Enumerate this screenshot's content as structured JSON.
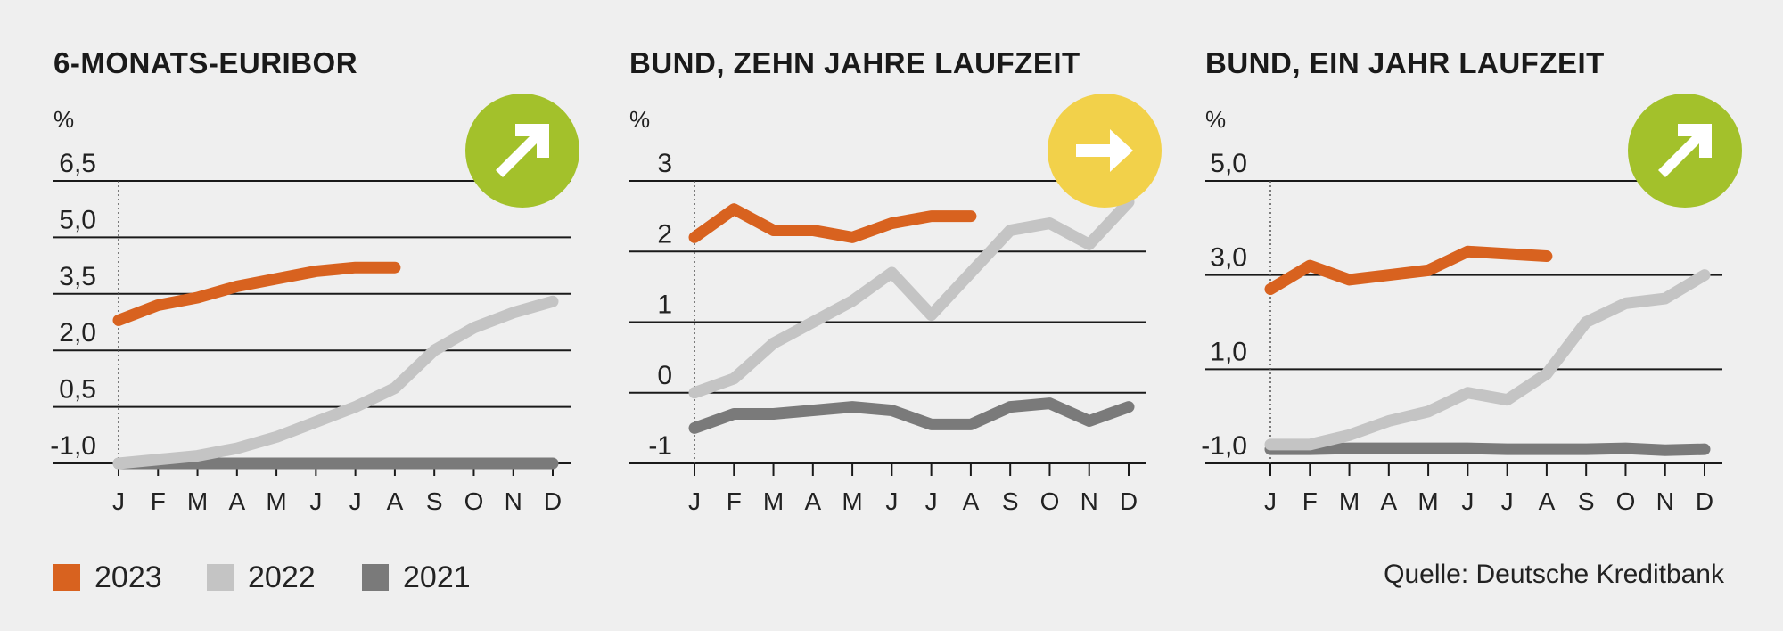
{
  "colors": {
    "2023": "#d8621f",
    "2022": "#c4c4c4",
    "2021": "#7a7a7a",
    "up": "#a3c12b",
    "side": "#f2d14a"
  },
  "legend": [
    {
      "label": "2023",
      "color": "#d8621f"
    },
    {
      "label": "2022",
      "color": "#c4c4c4"
    },
    {
      "label": "2021",
      "color": "#7a7a7a"
    }
  ],
  "source": "Quelle: Deutsche Kreditbank",
  "chart_data": [
    {
      "type": "line",
      "title": "6-MONATS-EURIBOR",
      "unit": "%",
      "trend": "up",
      "trend_icon": "arrow-up-right-icon",
      "categories": [
        "J",
        "F",
        "M",
        "A",
        "M",
        "J",
        "J",
        "A",
        "S",
        "O",
        "N",
        "D"
      ],
      "yticks": [
        "6,5",
        "5,0",
        "3,5",
        "2,0",
        "0,5",
        "-1,0"
      ],
      "ytick_values": [
        6.5,
        5.0,
        3.5,
        2.0,
        0.5,
        -1.0
      ],
      "ylim": [
        -1.0,
        6.5
      ],
      "series": [
        {
          "name": "2023",
          "values": [
            2.8,
            3.2,
            3.4,
            3.7,
            3.9,
            4.1,
            4.2,
            4.2,
            null,
            null,
            null,
            null
          ]
        },
        {
          "name": "2022",
          "values": [
            -1.0,
            -0.9,
            -0.8,
            -0.6,
            -0.3,
            0.1,
            0.5,
            1.0,
            2.0,
            2.6,
            3.0,
            3.3
          ]
        },
        {
          "name": "2021",
          "values": [
            -1.0,
            -1.0,
            -1.0,
            -1.0,
            -1.0,
            -1.0,
            -1.0,
            -1.0,
            -1.0,
            -1.0,
            -1.0,
            -1.0
          ]
        }
      ]
    },
    {
      "type": "line",
      "title": "BUND, ZEHN JAHRE LAUFZEIT",
      "unit": "%",
      "trend": "sideways",
      "trend_icon": "arrow-right-icon",
      "categories": [
        "J",
        "F",
        "M",
        "A",
        "M",
        "J",
        "J",
        "A",
        "S",
        "O",
        "N",
        "D"
      ],
      "yticks": [
        "3",
        "2",
        "1",
        "0",
        "-1"
      ],
      "ytick_values": [
        3,
        2,
        1,
        0,
        -1
      ],
      "ylim": [
        -1,
        3
      ],
      "series": [
        {
          "name": "2023",
          "values": [
            2.2,
            2.6,
            2.3,
            2.3,
            2.2,
            2.4,
            2.5,
            2.5,
            null,
            null,
            null,
            null
          ]
        },
        {
          "name": "2022",
          "values": [
            0.0,
            0.2,
            0.7,
            1.0,
            1.3,
            1.7,
            1.1,
            1.7,
            2.3,
            2.4,
            2.1,
            2.7
          ]
        },
        {
          "name": "2021",
          "values": [
            -0.5,
            -0.3,
            -0.3,
            -0.25,
            -0.2,
            -0.25,
            -0.45,
            -0.45,
            -0.2,
            -0.15,
            -0.4,
            -0.2
          ]
        }
      ]
    },
    {
      "type": "line",
      "title": "BUND, EIN JAHR LAUFZEIT",
      "unit": "%",
      "trend": "up",
      "trend_icon": "arrow-up-right-icon",
      "categories": [
        "J",
        "F",
        "M",
        "A",
        "M",
        "J",
        "J",
        "A",
        "S",
        "O",
        "N",
        "D"
      ],
      "yticks": [
        "5,0",
        "3,0",
        "1,0",
        "-1,0"
      ],
      "ytick_values": [
        5.0,
        3.0,
        1.0,
        -1.0
      ],
      "ylim": [
        -1.0,
        5.0
      ],
      "series": [
        {
          "name": "2023",
          "values": [
            2.7,
            3.2,
            2.9,
            3.0,
            3.1,
            3.5,
            3.45,
            3.4,
            null,
            null,
            null,
            null
          ]
        },
        {
          "name": "2022",
          "values": [
            -0.6,
            -0.6,
            -0.4,
            -0.1,
            0.1,
            0.5,
            0.35,
            0.9,
            2.0,
            2.4,
            2.5,
            3.0
          ]
        },
        {
          "name": "2021",
          "values": [
            -0.7,
            -0.7,
            -0.68,
            -0.68,
            -0.68,
            -0.68,
            -0.7,
            -0.7,
            -0.7,
            -0.68,
            -0.72,
            -0.7
          ]
        }
      ]
    }
  ]
}
